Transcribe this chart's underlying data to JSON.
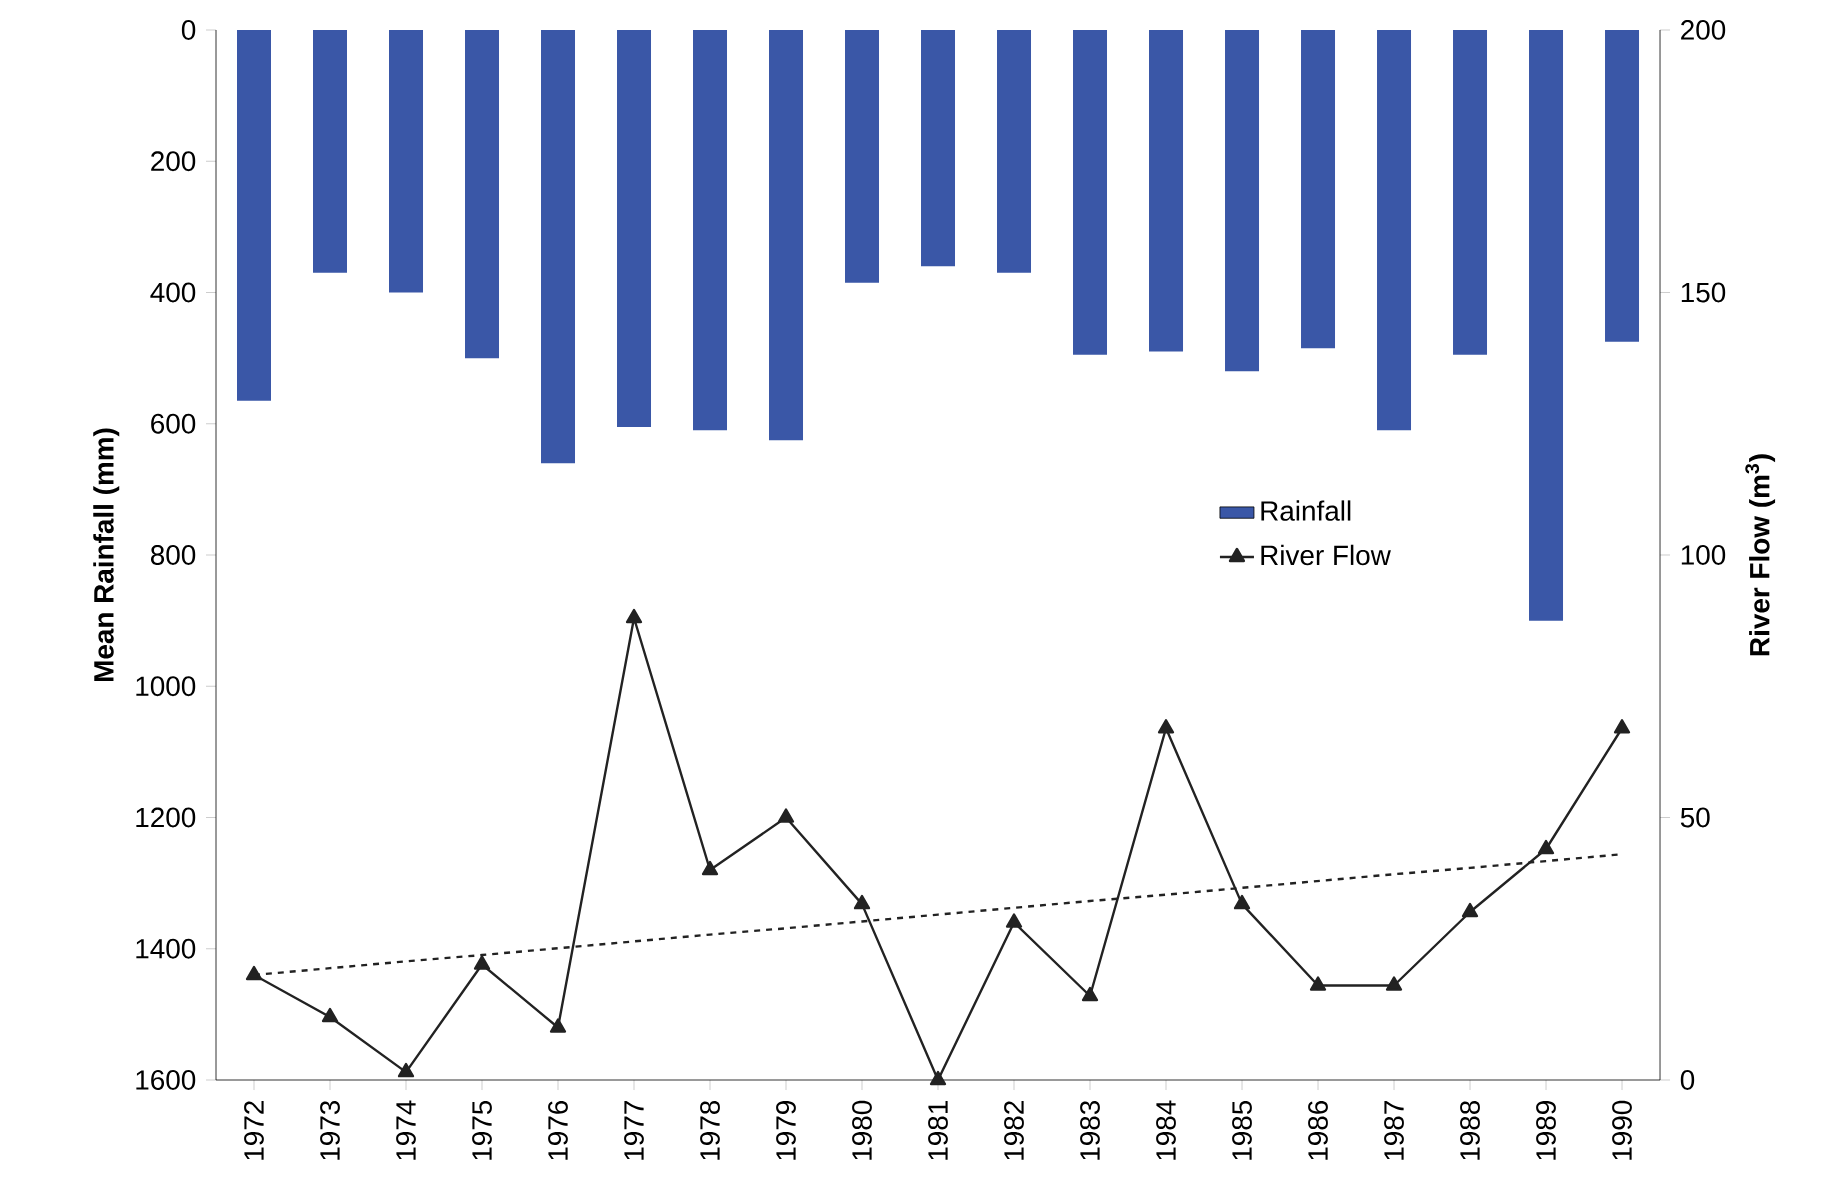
{
  "chart_data": {
    "type": "bar",
    "xlabel": null,
    "ylabel": "Mean Rainfall (mm)",
    "y2label": "River Flow (m$^{3}$)",
    "categories": [
      "1972",
      "1973",
      "1974",
      "1975",
      "1976",
      "1977",
      "1978",
      "1979",
      "1980",
      "1981",
      "1982",
      "1983",
      "1984",
      "1985",
      "1986",
      "1987",
      "1988",
      "1989",
      "1990"
    ],
    "series": [
      {
        "name": "Rainfall",
        "color": "#3a57a7",
        "values": [
          565,
          370,
          400,
          500,
          660,
          605,
          610,
          625,
          385,
          360,
          370,
          495,
          490,
          520,
          485,
          610,
          495,
          900,
          475
        ]
      },
      {
        "name": "River Flow",
        "type": "line",
        "axis": "y2",
        "color": "#222222",
        "marker": "triangle",
        "line_style": "solid",
        "values": [
          20,
          12,
          1.5,
          22,
          10,
          88,
          40,
          50,
          33.5,
          0,
          30,
          16,
          67,
          33.5,
          18,
          18,
          32,
          44,
          67
        ]
      },
      {
        "type": "line",
        "axis": "y2",
        "color": "#222222",
        "marker": "none",
        "line_style": "dashed",
        "values": [
          20.0,
          21.3,
          22.6,
          23.8,
          25.1,
          26.4,
          27.7,
          28.9,
          30.2,
          31.5,
          32.8,
          34.1,
          35.3,
          36.6,
          37.9,
          39.2,
          40.4,
          41.7,
          43.0
        ]
      }
    ],
    "ylim": [
      1600,
      0
    ],
    "yticks": [
      0,
      200,
      400,
      600,
      800,
      1000,
      1200,
      1400,
      1600
    ],
    "y2lim": [
      0,
      200
    ],
    "y2ticks": [
      0,
      50,
      100,
      150,
      200
    ],
    "grid": false,
    "legend": "right"
  }
}
